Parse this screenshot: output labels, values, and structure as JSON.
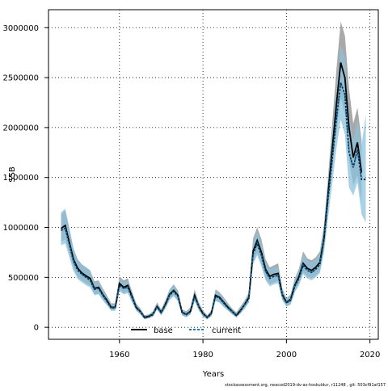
{
  "chart_data": {
    "type": "line",
    "title": "",
    "xlabel": "Years",
    "ylabel": "SSB",
    "xlim": [
      1943,
      2022
    ],
    "ylim": [
      -120000,
      3180000
    ],
    "xticks": [
      1960,
      1980,
      2000,
      2020
    ],
    "yticks": [
      0,
      500000,
      1000000,
      1500000,
      2000000,
      2500000,
      3000000
    ],
    "grid": true,
    "legend_position": "bottom-left",
    "footer": "stockassessment.org, neacod2019-dv-as-hoskuldur, r11248 , git: 503cf91af157",
    "colors": {
      "base": "#000000",
      "current": "#1f77b4",
      "base_band": "#9a9a9a",
      "current_band": "#8ec3dd"
    },
    "series": [
      {
        "name": "base",
        "x": [
          1946,
          1947,
          1948,
          1949,
          1950,
          1951,
          1952,
          1953,
          1954,
          1955,
          1956,
          1957,
          1958,
          1959,
          1960,
          1961,
          1962,
          1963,
          1964,
          1965,
          1966,
          1967,
          1968,
          1969,
          1970,
          1971,
          1972,
          1973,
          1974,
          1975,
          1976,
          1977,
          1978,
          1979,
          1980,
          1981,
          1982,
          1983,
          1984,
          1985,
          1986,
          1987,
          1988,
          1989,
          1990,
          1991,
          1992,
          1993,
          1994,
          1995,
          1996,
          1997,
          1998,
          1999,
          2000,
          2001,
          2002,
          2003,
          2004,
          2005,
          2006,
          2007,
          2008,
          2009,
          2010,
          2011,
          2012,
          2013,
          2014,
          2015,
          2016,
          2017,
          2018
        ],
        "y": [
          990000,
          1020000,
          850000,
          680000,
          590000,
          545000,
          515000,
          490000,
          390000,
          400000,
          330000,
          270000,
          200000,
          200000,
          440000,
          400000,
          420000,
          310000,
          200000,
          160000,
          100000,
          110000,
          130000,
          210000,
          150000,
          230000,
          330000,
          370000,
          320000,
          150000,
          130000,
          160000,
          320000,
          210000,
          140000,
          100000,
          140000,
          320000,
          300000,
          250000,
          200000,
          160000,
          120000,
          170000,
          230000,
          300000,
          760000,
          870000,
          750000,
          580000,
          510000,
          530000,
          540000,
          330000,
          250000,
          280000,
          420000,
          510000,
          640000,
          590000,
          570000,
          600000,
          650000,
          900000,
          1350000,
          1800000,
          2250000,
          2650000,
          2500000,
          2000000,
          1700000,
          1850000,
          1550000
        ],
        "band_lo": [
          860000,
          880000,
          740000,
          590000,
          510000,
          470000,
          440000,
          420000,
          330000,
          340000,
          280000,
          230000,
          170000,
          170000,
          380000,
          340000,
          360000,
          260000,
          170000,
          130000,
          80000,
          90000,
          110000,
          180000,
          120000,
          190000,
          280000,
          320000,
          270000,
          120000,
          100000,
          130000,
          270000,
          170000,
          110000,
          80000,
          110000,
          270000,
          250000,
          210000,
          170000,
          130000,
          100000,
          140000,
          190000,
          250000,
          650000,
          750000,
          630000,
          490000,
          430000,
          450000,
          460000,
          280000,
          210000,
          230000,
          360000,
          440000,
          550000,
          510000,
          490000,
          520000,
          560000,
          790000,
          1200000,
          1580000,
          1960000,
          2300000,
          2130000,
          1680000,
          1420000,
          1520000,
          1250000
        ],
        "band_hi": [
          1130000,
          1170000,
          980000,
          780000,
          680000,
          630000,
          600000,
          570000,
          460000,
          470000,
          390000,
          320000,
          240000,
          240000,
          510000,
          470000,
          490000,
          360000,
          240000,
          190000,
          120000,
          130000,
          160000,
          250000,
          180000,
          270000,
          380000,
          430000,
          370000,
          180000,
          160000,
          200000,
          380000,
          250000,
          170000,
          120000,
          170000,
          380000,
          350000,
          300000,
          240000,
          190000,
          150000,
          210000,
          270000,
          350000,
          890000,
          1000000,
          880000,
          680000,
          600000,
          620000,
          640000,
          390000,
          290000,
          330000,
          490000,
          590000,
          760000,
          690000,
          670000,
          700000,
          760000,
          1030000,
          1520000,
          2060000,
          2600000,
          3060000,
          2920000,
          2390000,
          2040000,
          2200000,
          1870000
        ]
      },
      {
        "name": "current",
        "x": [
          1946,
          1947,
          1948,
          1949,
          1950,
          1951,
          1952,
          1953,
          1954,
          1955,
          1956,
          1957,
          1958,
          1959,
          1960,
          1961,
          1962,
          1963,
          1964,
          1965,
          1966,
          1967,
          1968,
          1969,
          1970,
          1971,
          1972,
          1973,
          1974,
          1975,
          1976,
          1977,
          1978,
          1979,
          1980,
          1981,
          1982,
          1983,
          1984,
          1985,
          1986,
          1987,
          1988,
          1989,
          1990,
          1991,
          1992,
          1993,
          1994,
          1995,
          1996,
          1997,
          1998,
          1999,
          2000,
          2001,
          2002,
          2003,
          2004,
          2005,
          2006,
          2007,
          2008,
          2009,
          2010,
          2011,
          2012,
          2013,
          2014,
          2015,
          2016,
          2017,
          2018,
          2019
        ],
        "y": [
          970000,
          990000,
          830000,
          660000,
          570000,
          530000,
          500000,
          470000,
          380000,
          390000,
          320000,
          260000,
          195000,
          195000,
          420000,
          390000,
          400000,
          300000,
          195000,
          155000,
          95000,
          105000,
          125000,
          205000,
          145000,
          225000,
          320000,
          360000,
          310000,
          145000,
          125000,
          155000,
          310000,
          205000,
          135000,
          95000,
          135000,
          310000,
          290000,
          240000,
          195000,
          155000,
          115000,
          165000,
          225000,
          290000,
          730000,
          840000,
          720000,
          560000,
          490000,
          510000,
          520000,
          320000,
          245000,
          270000,
          410000,
          490000,
          620000,
          570000,
          550000,
          580000,
          630000,
          880000,
          1300000,
          1700000,
          2100000,
          2450000,
          2330000,
          1750000,
          1600000,
          1780000,
          1480000,
          1480000
        ],
        "band_lo": [
          820000,
          840000,
          700000,
          560000,
          480000,
          450000,
          420000,
          400000,
          320000,
          330000,
          270000,
          220000,
          165000,
          165000,
          360000,
          330000,
          340000,
          250000,
          165000,
          130000,
          80000,
          90000,
          105000,
          175000,
          120000,
          190000,
          270000,
          310000,
          260000,
          120000,
          105000,
          130000,
          260000,
          175000,
          115000,
          80000,
          115000,
          260000,
          245000,
          200000,
          165000,
          130000,
          95000,
          140000,
          190000,
          245000,
          630000,
          720000,
          610000,
          470000,
          410000,
          430000,
          440000,
          270000,
          205000,
          230000,
          350000,
          420000,
          530000,
          490000,
          470000,
          500000,
          540000,
          750000,
          1100000,
          1450000,
          1800000,
          2080000,
          1930000,
          1400000,
          1320000,
          1450000,
          1130000,
          1050000
        ],
        "band_hi": [
          1150000,
          1190000,
          1000000,
          790000,
          680000,
          630000,
          600000,
          560000,
          450000,
          460000,
          380000,
          310000,
          230000,
          230000,
          490000,
          450000,
          470000,
          350000,
          230000,
          185000,
          115000,
          125000,
          150000,
          245000,
          175000,
          260000,
          380000,
          420000,
          370000,
          175000,
          150000,
          185000,
          370000,
          245000,
          160000,
          115000,
          160000,
          370000,
          345000,
          290000,
          230000,
          185000,
          140000,
          195000,
          265000,
          345000,
          860000,
          970000,
          840000,
          660000,
          580000,
          600000,
          610000,
          380000,
          290000,
          320000,
          480000,
          580000,
          730000,
          670000,
          650000,
          680000,
          740000,
          1010000,
          1500000,
          1950000,
          2420000,
          2820000,
          2700000,
          2120000,
          1870000,
          2080000,
          1820000,
          2130000
        ]
      }
    ]
  }
}
